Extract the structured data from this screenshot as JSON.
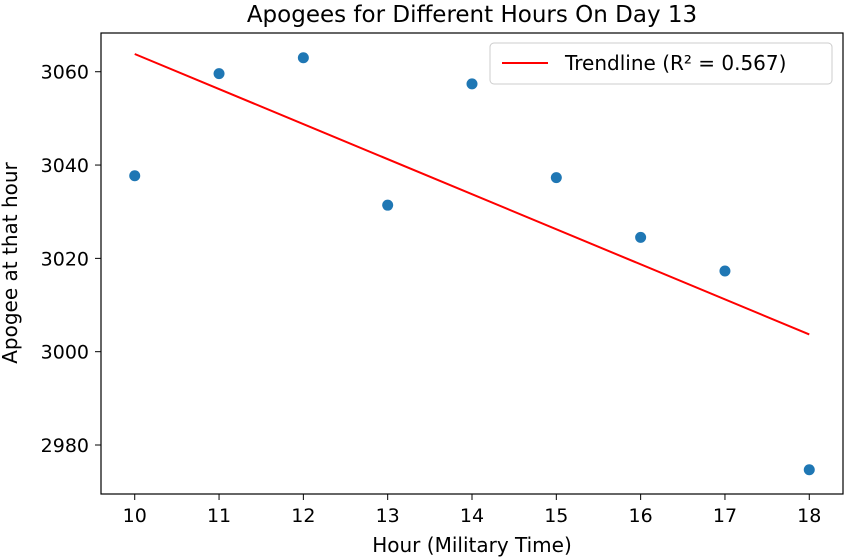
{
  "chart_data": {
    "type": "scatter",
    "title": "Apogees for Different Hours On Day 13",
    "xlabel": "Hour (Military Time)",
    "ylabel": "Apogee at that hour",
    "xlim": [
      9.6,
      18.4
    ],
    "ylim": [
      2969.5,
      3068.3
    ],
    "xticks": [
      10,
      11,
      12,
      13,
      14,
      15,
      16,
      17,
      18
    ],
    "yticks": [
      2980,
      3000,
      3020,
      3040,
      3060
    ],
    "grid": false,
    "legend_position": "top-right",
    "series": [
      {
        "kind": "scatter",
        "color": "#1f77b4",
        "x": [
          10,
          11,
          12,
          13,
          14,
          15,
          16,
          17,
          18
        ],
        "y": [
          3037.7,
          3059.6,
          3063.0,
          3031.4,
          3057.4,
          3037.3,
          3024.5,
          3017.3,
          2974.7
        ]
      },
      {
        "kind": "line",
        "name": "Trendline (R² = 0.567)",
        "color": "#ff0000",
        "x": [
          10,
          18
        ],
        "y": [
          3063.8,
          3003.7
        ]
      }
    ]
  }
}
